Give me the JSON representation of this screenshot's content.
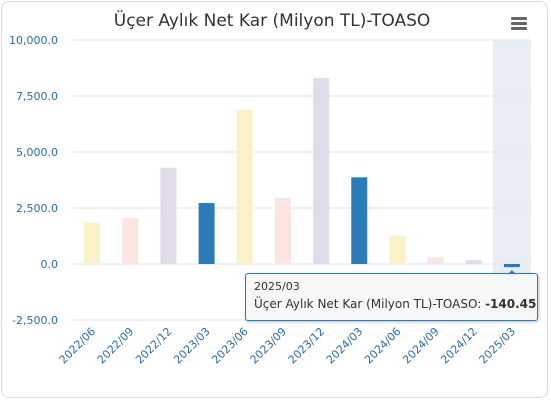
{
  "chart_data": {
    "type": "bar",
    "title": "Üçer Aylık Net Kar (Milyon TL)-TOASO",
    "categories": [
      "2022/06",
      "2022/09",
      "2022/12",
      "2023/03",
      "2023/06",
      "2023/09",
      "2023/12",
      "2024/03",
      "2024/06",
      "2024/09",
      "2024/12",
      "2025/03"
    ],
    "values": [
      1850,
      2050,
      4300,
      2720,
      6900,
      2950,
      8300,
      3870,
      1280,
      300,
      170,
      -140.45
    ],
    "ylim": [
      -2500,
      10000
    ],
    "yticks": [
      "10,000.0",
      "7,500.0",
      "5,000.0",
      "2,500.0",
      "0.0",
      "-2,500.0"
    ],
    "grid": true,
    "legend": "none"
  },
  "colors": {
    "highlight": "#2b7bb9",
    "faded": [
      "#fbf1c9",
      "#f9e6e3",
      "#e2dbea",
      "#2b7bb9",
      "#fbf1c9",
      "#f9e6e3",
      "#e2dbea",
      "#2b7bb9",
      "#fbf1c9",
      "#f9e6e3",
      "#e2dbea",
      "#2b7bb9"
    ],
    "hover_band": "#e9eef5",
    "grid": "#e6e6e6",
    "axis_label": "#2b6aa8"
  },
  "tooltip": {
    "date": "2025/03",
    "series_label": "Üçer Aylık Net Kar (Milyon TL)-TOASO: ",
    "value": "-140.45"
  },
  "menu": {
    "icon": "hamburger-icon"
  }
}
